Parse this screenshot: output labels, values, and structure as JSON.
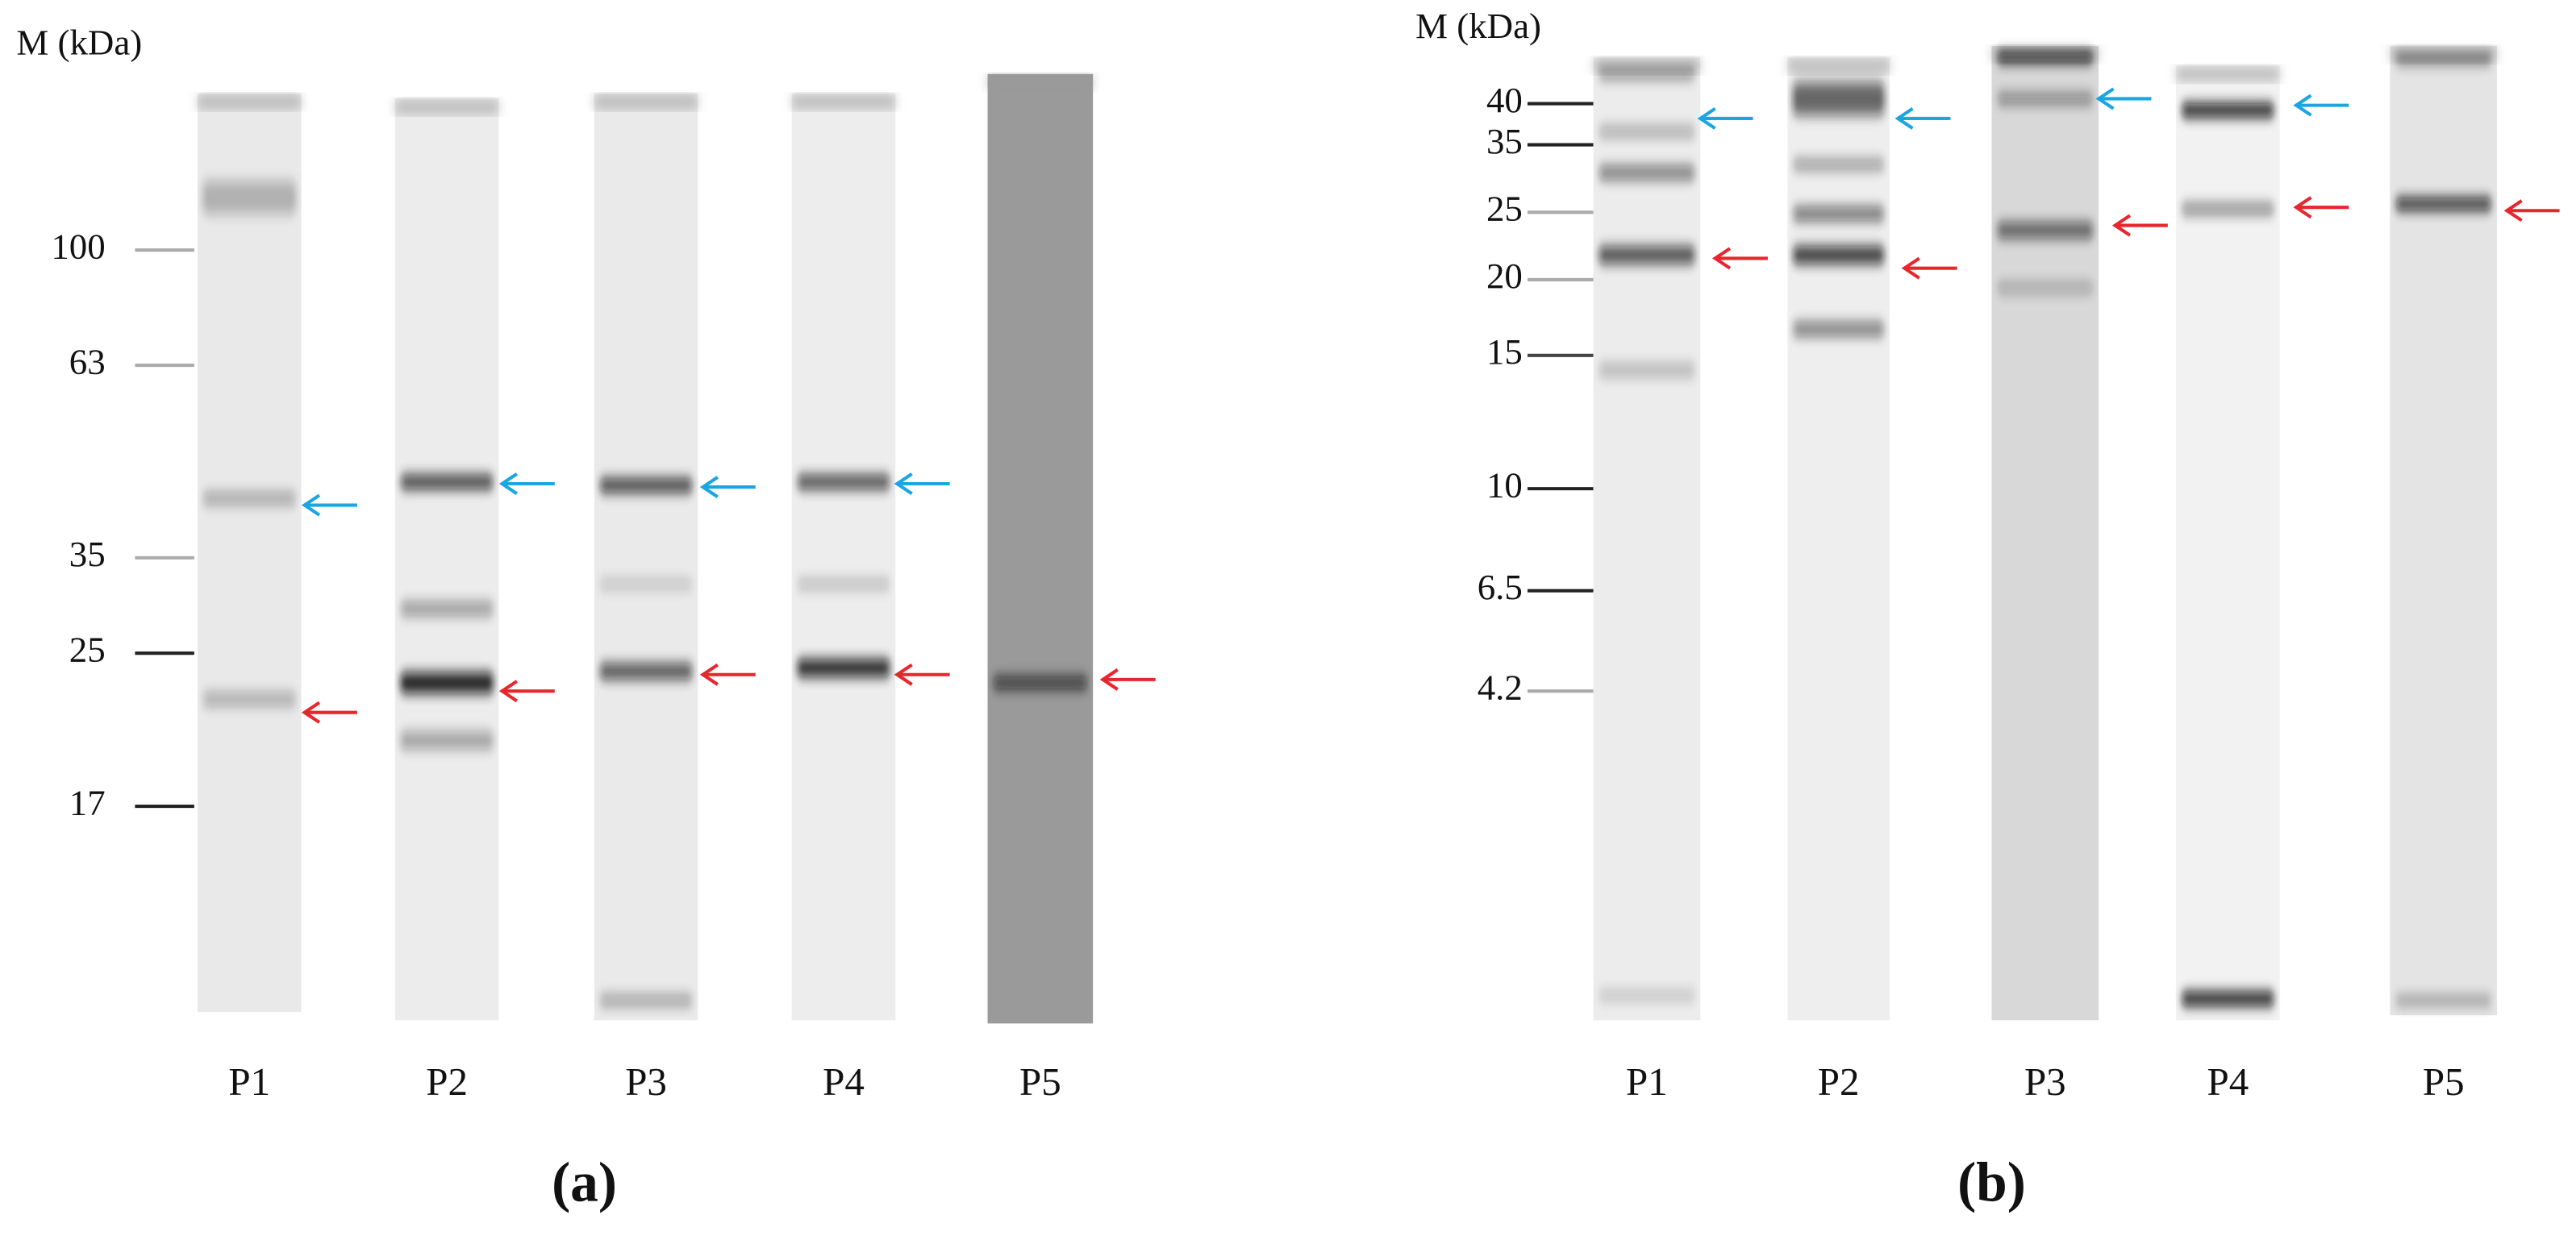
{
  "panels": [
    {
      "axis_label": "M (kDa)",
      "markers": [
        "100",
        "63",
        "35",
        "25",
        "17"
      ],
      "lanes": [
        "P1",
        "P2",
        "P3",
        "P4",
        "P5"
      ],
      "caption": "(a)"
    },
    {
      "axis_label": "M (kDa)",
      "markers": [
        "40",
        "35",
        "25",
        "20",
        "15",
        "10",
        "6.5",
        "4.2"
      ],
      "lanes": [
        "P1",
        "P2",
        "P3",
        "P4",
        "P5"
      ],
      "caption": "(b)"
    }
  ]
}
